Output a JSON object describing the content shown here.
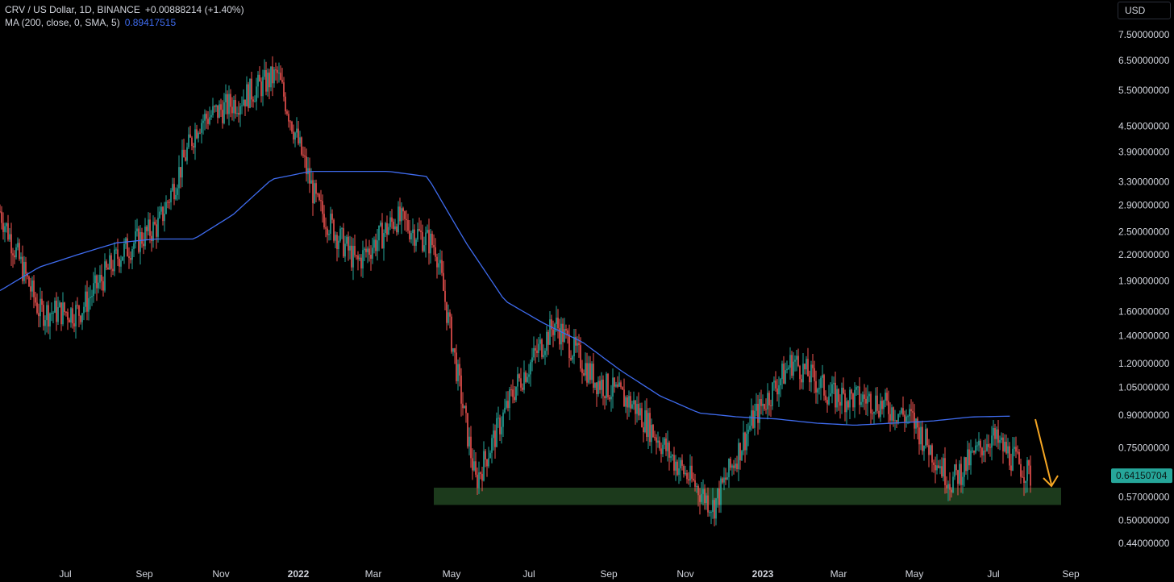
{
  "header": {
    "symbol_line": "CRV / US Dollar, 1D, BINANCE",
    "change": "+0.00888214 (+1.40%)",
    "ma_label": "MA (200, close, 0, SMA, 5)",
    "ma_value": "0.89417515"
  },
  "currency_button": "USD",
  "price_axis": {
    "ticks": [
      "7.50000000",
      "6.50000000",
      "5.50000000",
      "4.50000000",
      "3.90000000",
      "3.30000000",
      "2.90000000",
      "2.50000000",
      "2.20000000",
      "1.90000000",
      "1.60000000",
      "1.40000000",
      "1.20000000",
      "1.05000000",
      "0.90000000",
      "0.75000000",
      "0.57000000",
      "0.50000000",
      "0.44000000"
    ],
    "last_price_label": "0.64150704"
  },
  "time_axis": {
    "labels": [
      "Jul",
      "Sep",
      "Nov",
      "2022",
      "Mar",
      "May",
      "Jul",
      "Sep",
      "Nov",
      "2023",
      "Mar",
      "May",
      "Jul",
      "Sep"
    ]
  },
  "colors": {
    "background": "#000000",
    "up_candle": "#26a69a",
    "down_candle": "#ef5350",
    "ma_line": "#3f6cf0",
    "support_zone": "#1c3a1c",
    "arrow": "#f5a623",
    "last_price_tag": "#26a69a"
  },
  "chart_data": {
    "type": "line",
    "title": "CRV / US Dollar, 1D, BINANCE",
    "scale": "log",
    "ylim": [
      0.4,
      8.0
    ],
    "x": [
      "2021-06",
      "2021-07",
      "2021-08",
      "2021-09",
      "2021-10",
      "2021-11",
      "2021-12",
      "2022-01",
      "2022-02",
      "2022-03",
      "2022-04",
      "2022-05",
      "2022-06",
      "2022-07",
      "2022-08",
      "2022-09",
      "2022-10",
      "2022-11",
      "2022-12",
      "2023-01",
      "2023-02",
      "2023-03",
      "2023-04",
      "2023-05",
      "2023-06",
      "2023-07",
      "2023-08"
    ],
    "series": [
      {
        "name": "CRV / US Dollar",
        "values": [
          2.8,
          1.6,
          1.6,
          2.2,
          2.6,
          4.6,
          5.2,
          6.0,
          2.9,
          2.1,
          2.7,
          2.3,
          0.62,
          1.05,
          1.5,
          1.1,
          0.95,
          0.7,
          0.54,
          0.88,
          1.22,
          1.0,
          0.98,
          0.88,
          0.62,
          0.8,
          0.6415
        ]
      },
      {
        "name": "MA (200, close, 0, SMA, 5)",
        "values": [
          1.8,
          2.05,
          2.2,
          2.35,
          2.4,
          2.4,
          2.75,
          3.35,
          3.5,
          3.5,
          3.5,
          3.4,
          2.35,
          1.7,
          1.5,
          1.35,
          1.15,
          1.0,
          0.91,
          0.89,
          0.88,
          0.86,
          0.85,
          0.86,
          0.87,
          0.89,
          0.894
        ]
      }
    ],
    "support_zone": [
      0.545,
      0.6
    ],
    "grid": false
  }
}
